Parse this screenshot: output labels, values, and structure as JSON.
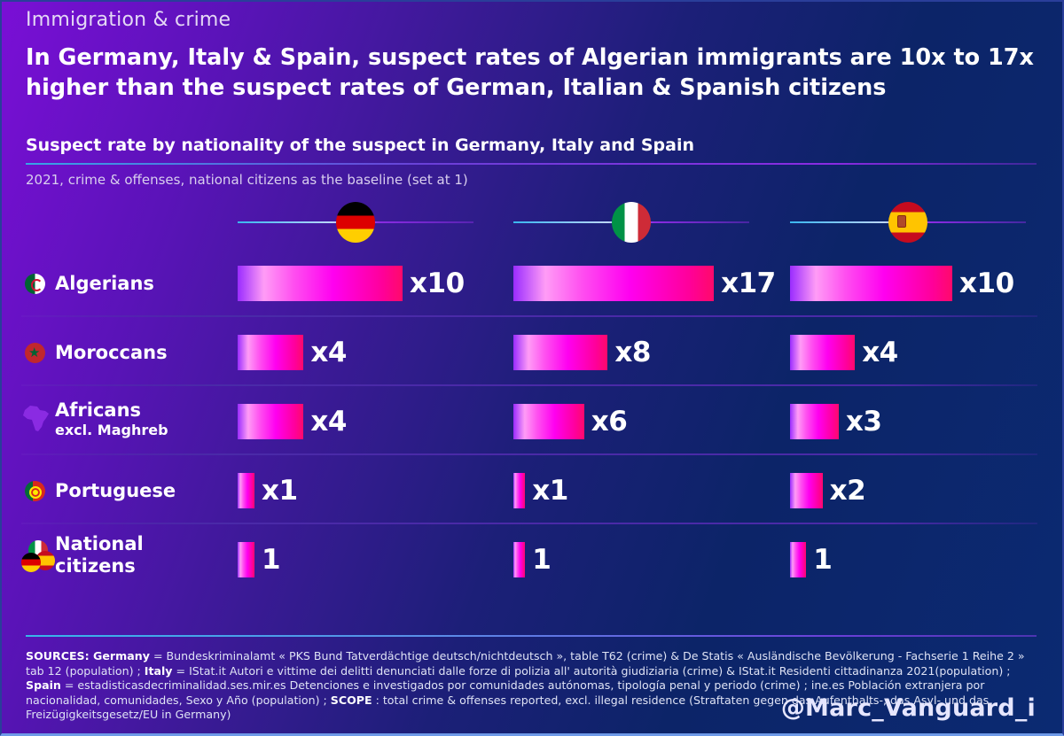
{
  "header": {
    "kicker": "Immigration & crime",
    "headline": "In Germany, Italy & Spain, suspect rates of Algerian immigrants are 10x to 17x higher than the suspect rates of German, Italian & Spanish citizens",
    "subtitle": "Suspect rate by nationality of the suspect in Germany, Italy and Spain",
    "note": "2021, crime & offenses, national citizens as the baseline (set at 1)"
  },
  "colors": {
    "bar_gradient": [
      "#9a2cff",
      "#ff9cf6",
      "#ff00f0",
      "#ff0a6a"
    ],
    "background_start": "#7a0fd6",
    "background_end": "#0b2a72"
  },
  "chart_data": {
    "type": "bar",
    "orientation": "horizontal",
    "title": "Suspect rate by nationality of the suspect in Germany, Italy and Spain",
    "subtitle": "2021, crime & offenses, national citizens as the baseline (set at 1)",
    "xlabel": "",
    "ylabel": "",
    "baseline": 1,
    "categories": [
      "Algerians",
      "Moroccans",
      "Africans excl. Maghreb",
      "Portuguese",
      "National citizens"
    ],
    "category_icons": [
      "algeria-flag-icon",
      "morocco-flag-icon",
      "africa-map-icon",
      "portugal-flag-icon",
      "national-flags-icon"
    ],
    "category_labels": [
      {
        "main": "Algerians",
        "sub": ""
      },
      {
        "main": "Moroccans",
        "sub": ""
      },
      {
        "main": "Africans",
        "sub": "excl. Maghreb"
      },
      {
        "main": "Portuguese",
        "sub": ""
      },
      {
        "main": "National",
        "sub": "citizens"
      }
    ],
    "series": [
      {
        "name": "Germany",
        "flag": "germany-flag-icon",
        "values": [
          10,
          4,
          4,
          1,
          1
        ],
        "labels": [
          "x10",
          "x4",
          "x4",
          "x1",
          "1"
        ]
      },
      {
        "name": "Italy",
        "flag": "italy-flag-icon",
        "values": [
          17,
          8,
          6,
          1,
          1
        ],
        "labels": [
          "x17",
          "x8",
          "x6",
          "x1",
          "1"
        ]
      },
      {
        "name": "Spain",
        "flag": "spain-flag-icon",
        "values": [
          10,
          4,
          3,
          2,
          1
        ],
        "labels": [
          "x10",
          "x4",
          "x3",
          "x2",
          "1"
        ]
      }
    ],
    "grid": false,
    "legend": "none"
  },
  "footer": {
    "sources_parts": [
      {
        "t": "SOURCES: ",
        "b": true
      },
      {
        "t": "Germany",
        "b": true
      },
      {
        "t": " = Bundeskriminalamt « PKS Bund Tatverdächtige deutsch/nichtdeutsch », table T62 (crime) & De Statis « Ausländische Bevölkerung - Fachserie 1 Reihe 2 » tab 12 (population) ; ",
        "b": false
      },
      {
        "t": "Italy",
        "b": true
      },
      {
        "t": " = IStat.it Autori e vittime dei delitti denunciati dalle forze di polizia all' autorità giudiziaria (crime) & IStat.it Residenti cittadinanza 2021(population) ; ",
        "b": false
      },
      {
        "t": "Spain",
        "b": true
      },
      {
        "t": " = estadisticasdecriminalidad.ses.mir.es Detenciones e investigados por comunidades autónomas, tipología penal y periodo (crime) ; ine.es Población extranjera por nacionalidad, comunidades, Sexo y Año (population) ; ",
        "b": false
      },
      {
        "t": "SCOPE",
        "b": true
      },
      {
        "t": " : total crime & offenses reported, excl. illegal residence (Straftaten gegen das Aufenthalts-, das Asyl- und das Freizügigkeitsgesetz/EU in Germany)",
        "b": false
      }
    ],
    "handle": "@Marc_Vanguard_i"
  }
}
